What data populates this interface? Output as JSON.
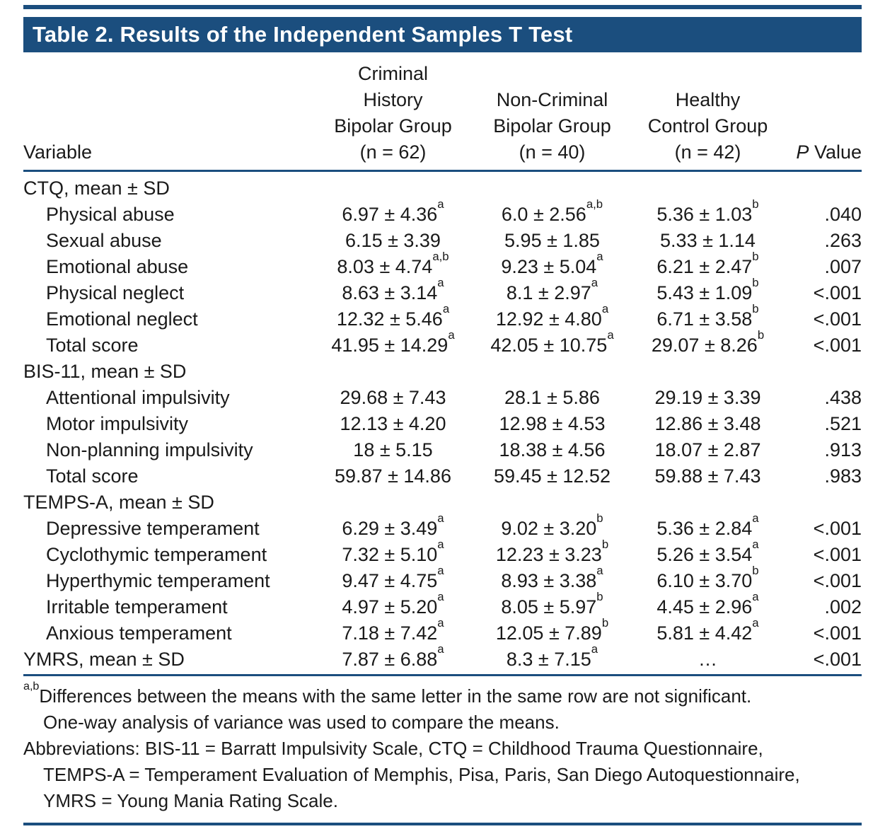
{
  "theme": {
    "accent": "#1B4E7E",
    "text": "#1A1A1A",
    "title_text": "#FFFFFF",
    "background": "#FFFFFF"
  },
  "title": "Table 2. Results of the Independent Samples T Test",
  "columns": {
    "variable": "Variable",
    "group1": "Criminal\nHistory\nBipolar Group\n(n = 62)",
    "group2": "Non-Criminal\nBipolar Group\n(n = 40)",
    "group3": "Healthy\nControl Group\n(n = 42)",
    "p_italic": "P",
    "p_rest": " Value"
  },
  "rows": [
    {
      "label": "CTQ, mean ± SD",
      "indent": false,
      "values": null,
      "p": null
    },
    {
      "label": "Physical abuse",
      "indent": true,
      "values": [
        "6.97 ± 4.36^a",
        "6.0 ± 2.56^a,b",
        "5.36 ± 1.03^b"
      ],
      "p": ".040"
    },
    {
      "label": "Sexual abuse",
      "indent": true,
      "values": [
        "6.15 ± 3.39",
        "5.95 ± 1.85",
        "5.33 ± 1.14"
      ],
      "p": ".263"
    },
    {
      "label": "Emotional abuse",
      "indent": true,
      "values": [
        "8.03 ± 4.74^a,b",
        "9.23 ± 5.04^a",
        "6.21 ± 2.47^b"
      ],
      "p": ".007"
    },
    {
      "label": "Physical neglect",
      "indent": true,
      "values": [
        "8.63 ± 3.14^a",
        "8.1 ± 2.97^a",
        "5.43 ± 1.09^b"
      ],
      "p": "<.001"
    },
    {
      "label": "Emotional neglect",
      "indent": true,
      "values": [
        "12.32 ± 5.46^a",
        "12.92 ± 4.80^a",
        "6.71 ± 3.58^b"
      ],
      "p": "<.001"
    },
    {
      "label": "Total score",
      "indent": true,
      "values": [
        "41.95 ± 14.29^a",
        "42.05 ± 10.75^a",
        "29.07 ± 8.26^b"
      ],
      "p": "<.001"
    },
    {
      "label": "BIS-11, mean ± SD",
      "indent": false,
      "values": null,
      "p": null
    },
    {
      "label": "Attentional impulsivity",
      "indent": true,
      "values": [
        "29.68 ± 7.43",
        "28.1 ± 5.86",
        "29.19 ± 3.39"
      ],
      "p": ".438"
    },
    {
      "label": "Motor impulsivity",
      "indent": true,
      "values": [
        "12.13 ± 4.20",
        "12.98 ± 4.53",
        "12.86 ± 3.48"
      ],
      "p": ".521"
    },
    {
      "label": "Non-planning impulsivity",
      "indent": true,
      "values": [
        "18 ± 5.15",
        "18.38 ± 4.56",
        "18.07 ± 2.87"
      ],
      "p": ".913"
    },
    {
      "label": "Total score",
      "indent": true,
      "values": [
        "59.87 ± 14.86",
        "59.45 ± 12.52",
        "59.88 ± 7.43"
      ],
      "p": ".983"
    },
    {
      "label": "TEMPS-A, mean ± SD",
      "indent": false,
      "values": null,
      "p": null
    },
    {
      "label": "Depressive temperament",
      "indent": true,
      "values": [
        "6.29 ± 3.49^a",
        "9.02 ± 3.20^b",
        "5.36 ± 2.84^a"
      ],
      "p": "<.001"
    },
    {
      "label": "Cyclothymic temperament",
      "indent": true,
      "values": [
        "7.32 ± 5.10^a",
        "12.23 ± 3.23^b",
        "5.26 ± 3.54^a"
      ],
      "p": "<.001"
    },
    {
      "label": "Hyperthymic temperament",
      "indent": true,
      "values": [
        "9.47 ± 4.75^a",
        "8.93 ± 3.38^a",
        "6.10 ± 3.70^b"
      ],
      "p": "<.001"
    },
    {
      "label": "Irritable temperament",
      "indent": true,
      "values": [
        "4.97 ± 5.20^a",
        "8.05 ± 5.97^b",
        "4.45 ± 2.96^a"
      ],
      "p": ".002"
    },
    {
      "label": "Anxious temperament",
      "indent": true,
      "values": [
        "7.18 ± 7.42^a",
        "12.05 ± 7.89^b",
        "5.81 ± 4.42^a"
      ],
      "p": "<.001"
    },
    {
      "label": "YMRS, mean ± SD",
      "indent": false,
      "values": [
        "7.87 ± 6.88^a",
        "8.3 ± 7.15^a",
        "…"
      ],
      "p": "<.001"
    }
  ],
  "footnotes": [
    {
      "sup": "a,b",
      "text": "Differences between the means with the same letter in the same row are not significant.\nOne-way analysis of variance was used to compare the means."
    },
    {
      "sup": "",
      "text": "Abbreviations: BIS-11 = Barratt Impulsivity Scale, CTQ = Childhood Trauma Questionnaire,\nTEMPS-A = Temperament Evaluation of Memphis, Pisa, Paris, San Diego Autoquestionnaire,\nYMRS = Young Mania Rating Scale."
    }
  ]
}
